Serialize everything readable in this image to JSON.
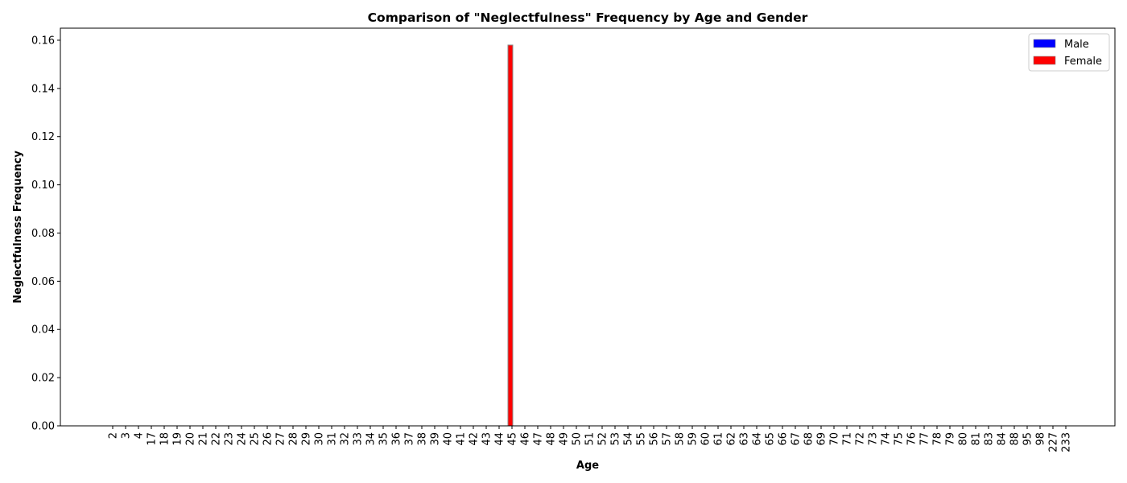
{
  "chart_data": {
    "type": "bar",
    "title": "Comparison of \"Neglectfulness\" Frequency by Age and Gender",
    "xlabel": "Age",
    "ylabel": "Neglectfulness Frequency",
    "ylim": [
      0,
      0.165
    ],
    "yticks": [
      "0.00",
      "0.02",
      "0.04",
      "0.06",
      "0.08",
      "0.10",
      "0.12",
      "0.14",
      "0.16"
    ],
    "grid": false,
    "legend_position": "top-right",
    "categories": [
      "2",
      "3",
      "4",
      "17",
      "18",
      "19",
      "20",
      "21",
      "22",
      "23",
      "24",
      "25",
      "26",
      "27",
      "28",
      "29",
      "30",
      "31",
      "32",
      "33",
      "34",
      "35",
      "36",
      "37",
      "38",
      "39",
      "40",
      "41",
      "42",
      "43",
      "44",
      "45",
      "46",
      "47",
      "48",
      "49",
      "50",
      "51",
      "52",
      "53",
      "54",
      "55",
      "56",
      "57",
      "58",
      "59",
      "60",
      "61",
      "62",
      "63",
      "64",
      "65",
      "66",
      "67",
      "68",
      "69",
      "70",
      "71",
      "72",
      "73",
      "74",
      "75",
      "76",
      "77",
      "78",
      "79",
      "80",
      "81",
      "83",
      "84",
      "88",
      "95",
      "98",
      "227",
      "233"
    ],
    "series": [
      {
        "name": "Male",
        "color": "#0000ff",
        "values": [
          0,
          0,
          0,
          0,
          0,
          0,
          0,
          0,
          0,
          0,
          0,
          0,
          0,
          0,
          0,
          0,
          0,
          0,
          0,
          0,
          0,
          0,
          0,
          0,
          0,
          0,
          0,
          0,
          0,
          0,
          0,
          0,
          0,
          0,
          0,
          0,
          0,
          0,
          0,
          0,
          0,
          0,
          0,
          0,
          0,
          0,
          0,
          0,
          0,
          0,
          0,
          0,
          0,
          0,
          0,
          0,
          0,
          0,
          0,
          0,
          0,
          0,
          0,
          0,
          0,
          0,
          0,
          0,
          0,
          0,
          0,
          0,
          0,
          0,
          0
        ]
      },
      {
        "name": "Female",
        "color": "#ff0000",
        "values": [
          0,
          0,
          0,
          0,
          0,
          0,
          0,
          0,
          0,
          0,
          0,
          0,
          0,
          0,
          0,
          0,
          0,
          0,
          0,
          0,
          0,
          0,
          0,
          0,
          0,
          0,
          0,
          0,
          0,
          0,
          0,
          0.158,
          0,
          0,
          0,
          0,
          0,
          0,
          0,
          0,
          0,
          0,
          0,
          0,
          0,
          0,
          0,
          0,
          0,
          0,
          0,
          0,
          0,
          0,
          0,
          0,
          0,
          0,
          0,
          0,
          0,
          0,
          0,
          0,
          0,
          0,
          0,
          0,
          0,
          0,
          0,
          0,
          0,
          0,
          0
        ]
      }
    ]
  }
}
